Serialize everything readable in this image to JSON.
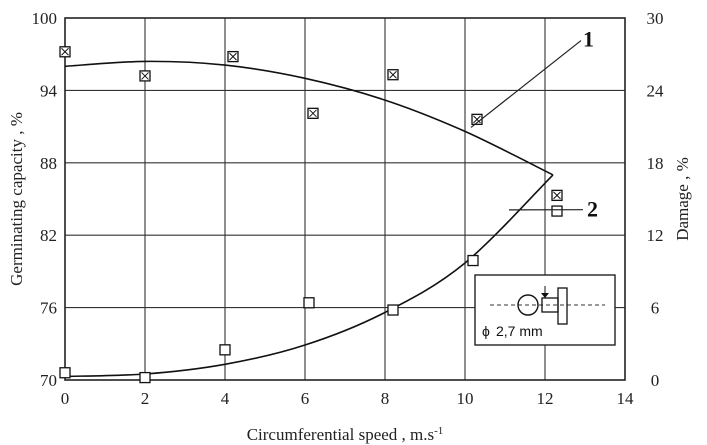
{
  "chart_data": {
    "type": "scatter",
    "title": "",
    "xlabel": "Circumferential speed , m.s",
    "xlabel_exponent": "-1",
    "ylabel_left": "Germinating capacity , %",
    "ylabel_right": "Damage , %",
    "xlim": [
      0,
      14
    ],
    "ylim_left": [
      70,
      100
    ],
    "ylim_right": [
      0,
      30
    ],
    "x_ticks": [
      0,
      2,
      4,
      6,
      8,
      10,
      12,
      14
    ],
    "y_left_ticks": [
      70,
      76,
      82,
      88,
      94,
      100
    ],
    "y_right_ticks": [
      0,
      6,
      12,
      18,
      24,
      30
    ],
    "grid": true,
    "series": [
      {
        "name": "1",
        "axis": "left",
        "marker": "crossed-square",
        "points": [
          [
            0,
            97.2
          ],
          [
            2,
            95.2
          ],
          [
            4.2,
            96.8
          ],
          [
            6.2,
            92.1
          ],
          [
            8.2,
            95.3
          ],
          [
            10.3,
            91.6
          ],
          [
            12.3,
            85.3
          ]
        ],
        "fit": [
          [
            0,
            96.0
          ],
          [
            2,
            96.4
          ],
          [
            4,
            96.1
          ],
          [
            6,
            95.0
          ],
          [
            8,
            93.2
          ],
          [
            10,
            90.6
          ],
          [
            12.2,
            87.0
          ]
        ]
      },
      {
        "name": "2",
        "axis": "right",
        "marker": "open-square",
        "points": [
          [
            0,
            0.6
          ],
          [
            2,
            0.2
          ],
          [
            4,
            2.5
          ],
          [
            6.1,
            6.4
          ],
          [
            8.2,
            5.8
          ],
          [
            10.2,
            9.9
          ],
          [
            12.3,
            14.0
          ]
        ],
        "fit": [
          [
            0,
            0.3
          ],
          [
            2,
            0.5
          ],
          [
            4,
            1.3
          ],
          [
            6,
            2.9
          ],
          [
            8,
            5.6
          ],
          [
            10,
            9.7
          ],
          [
            12.2,
            17.0
          ]
        ]
      }
    ],
    "curve_labels": [
      "1",
      "2"
    ],
    "inset": {
      "label": "2,7 mm",
      "diameter_symbol": "ϕ"
    }
  }
}
